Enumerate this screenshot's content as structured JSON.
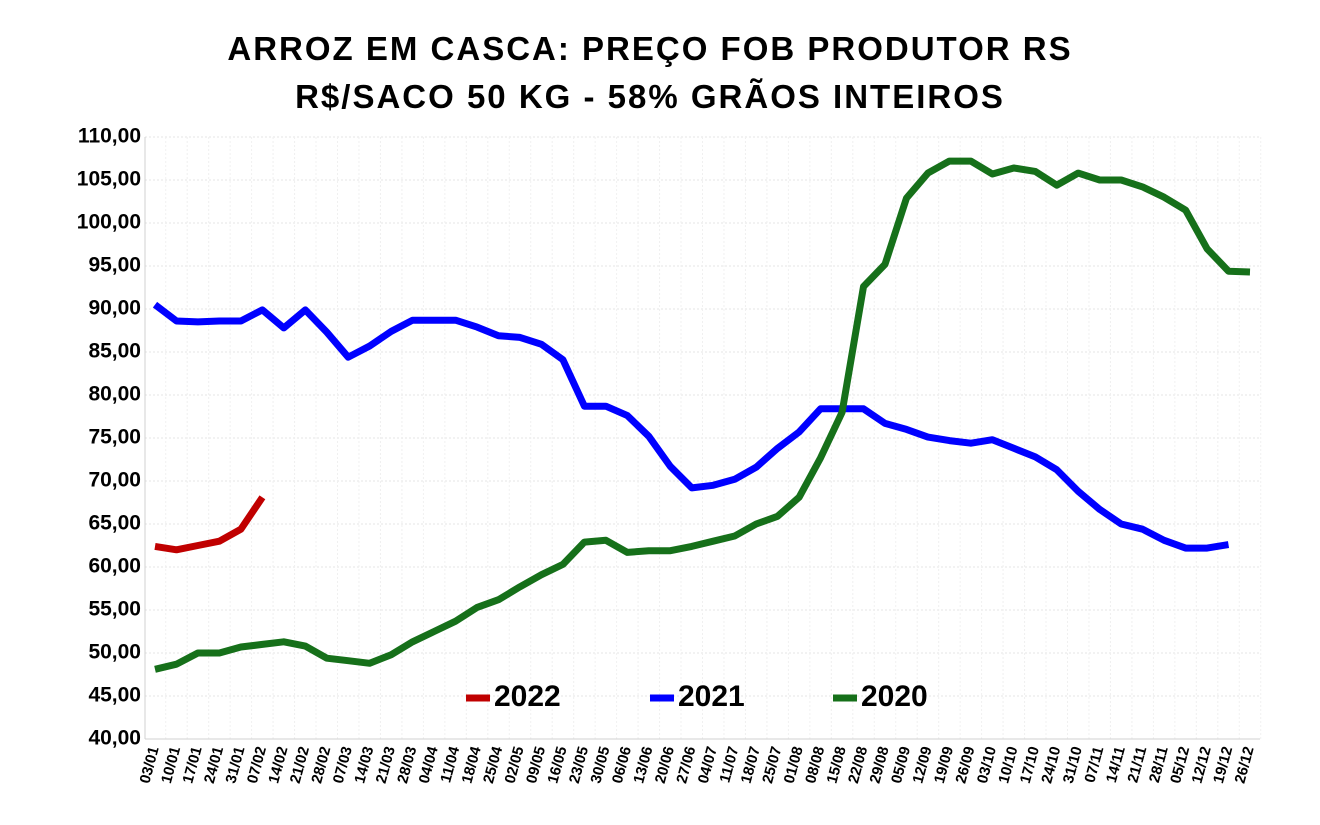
{
  "chart_data": {
    "type": "line",
    "title": "ARROZ EM CASCA: PREÇO FOB PRODUTOR RS",
    "subtitle": "R$/SACO 50 KG - 58% GRÃOS INTEIROS",
    "categories": [
      "03/01",
      "10/01",
      "17/01",
      "24/01",
      "31/01",
      "07/02",
      "14/02",
      "21/02",
      "28/02",
      "07/03",
      "14/03",
      "21/03",
      "28/03",
      "04/04",
      "11/04",
      "18/04",
      "25/04",
      "02/05",
      "09/05",
      "16/05",
      "23/05",
      "30/05",
      "06/06",
      "13/06",
      "20/06",
      "27/06",
      "04/07",
      "11/07",
      "18/07",
      "25/07",
      "01/08",
      "08/08",
      "15/08",
      "22/08",
      "29/08",
      "05/09",
      "12/09",
      "19/09",
      "26/09",
      "03/10",
      "10/10",
      "17/10",
      "24/10",
      "31/10",
      "07/11",
      "14/11",
      "21/11",
      "28/11",
      "05/12",
      "12/12",
      "19/12",
      "26/12"
    ],
    "series": [
      {
        "name": "2022",
        "color": "#c00000",
        "values": [
          62.4,
          62.0,
          62.5,
          63.0,
          64.4,
          68.1,
          null,
          null,
          null,
          null,
          null,
          null,
          null,
          null,
          null,
          null,
          null,
          null,
          null,
          null,
          null,
          null,
          null,
          null,
          null,
          null,
          null,
          null,
          null,
          null,
          null,
          null,
          null,
          null,
          null,
          null,
          null,
          null,
          null,
          null,
          null,
          null,
          null,
          null,
          null,
          null,
          null,
          null,
          null,
          null,
          null,
          null
        ]
      },
      {
        "name": "2021",
        "color": "#0000ff",
        "values": [
          90.5,
          88.6,
          88.5,
          88.6,
          88.6,
          89.9,
          87.8,
          89.9,
          87.3,
          84.4,
          85.7,
          87.4,
          88.7,
          88.7,
          88.7,
          87.9,
          86.9,
          86.7,
          85.9,
          84.1,
          78.7,
          78.7,
          77.6,
          75.2,
          71.7,
          69.2,
          69.5,
          70.2,
          71.6,
          73.8,
          75.7,
          78.4,
          78.4,
          78.4,
          76.7,
          76.0,
          75.1,
          74.7,
          74.4,
          74.8,
          73.8,
          72.8,
          71.3,
          68.8,
          66.7,
          65.0,
          64.4,
          63.1,
          62.2,
          62.2,
          62.6,
          null
        ]
      },
      {
        "name": "2020",
        "color": "#16701a",
        "values": [
          48.1,
          48.7,
          50.0,
          50.0,
          50.7,
          51.0,
          51.3,
          50.8,
          49.4,
          49.1,
          48.8,
          49.8,
          51.3,
          52.5,
          53.7,
          55.3,
          56.2,
          57.7,
          59.1,
          60.3,
          62.9,
          63.1,
          61.7,
          61.9,
          61.9,
          62.4,
          63.0,
          63.6,
          65.0,
          65.9,
          68.1,
          72.7,
          78.0,
          92.6,
          95.2,
          102.9,
          105.8,
          107.2,
          107.2,
          105.7,
          106.4,
          106.0,
          104.4,
          105.8,
          105.0,
          105.0,
          104.2,
          103.0,
          101.5,
          97.0,
          94.4,
          94.3
        ]
      }
    ],
    "ylim": [
      40,
      110
    ],
    "yticks": [
      {
        "value": 40,
        "label": "40,00"
      },
      {
        "value": 45,
        "label": "45,00"
      },
      {
        "value": 50,
        "label": "50,00"
      },
      {
        "value": 55,
        "label": "55,00"
      },
      {
        "value": 60,
        "label": "60,00"
      },
      {
        "value": 65,
        "label": "65,00"
      },
      {
        "value": 70,
        "label": "70,00"
      },
      {
        "value": 75,
        "label": "75,00"
      },
      {
        "value": 80,
        "label": "80,00"
      },
      {
        "value": 85,
        "label": "85,00"
      },
      {
        "value": 90,
        "label": "90,00"
      },
      {
        "value": 95,
        "label": "95,00"
      },
      {
        "value": 100,
        "label": "100,00"
      },
      {
        "value": 105,
        "label": "105,00"
      },
      {
        "value": 110,
        "label": "110,00"
      }
    ],
    "grid": true,
    "legend": "bottom"
  }
}
